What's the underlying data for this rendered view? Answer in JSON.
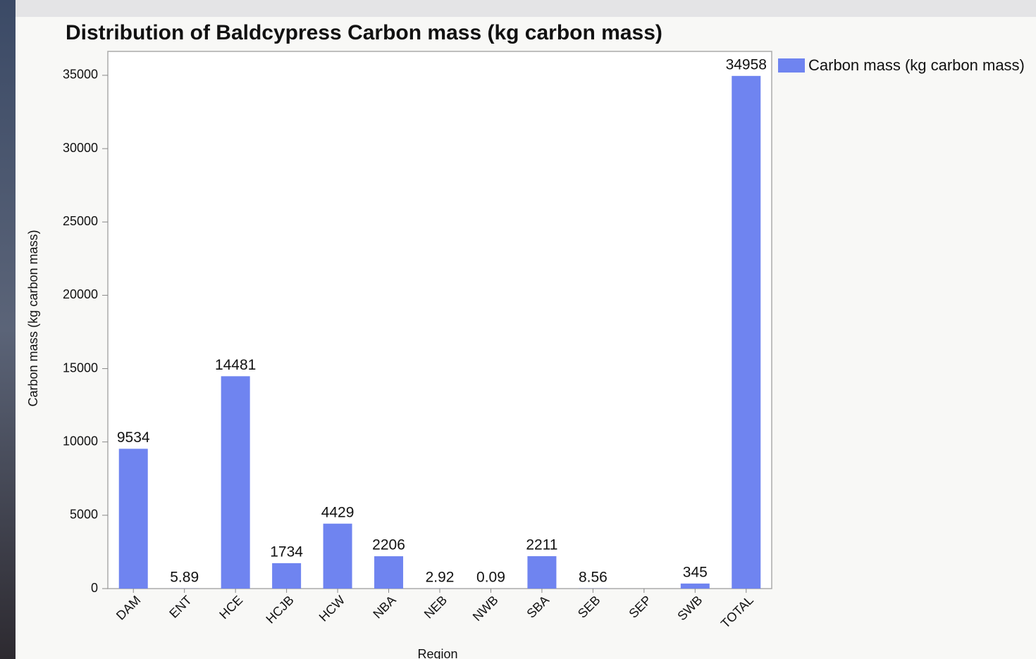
{
  "chart_data": {
    "type": "bar",
    "title": "Distribution of Baldcypress Carbon mass (kg carbon mass)",
    "x_label": "Region",
    "y_label": "Carbon mass (kg carbon mass)",
    "categories": [
      "DAM",
      "ENT",
      "HCE",
      "HCJB",
      "HCW",
      "NBA",
      "NEB",
      "NWB",
      "SBA",
      "SEB",
      "SEP",
      "SWB",
      "TOTAL"
    ],
    "series": [
      {
        "name": "Carbon mass (kg carbon mass)",
        "color": "#6f84f0",
        "values": [
          9534,
          5.89,
          14481,
          1734,
          4429,
          2206,
          2.92,
          0.09,
          2211,
          8.56,
          null,
          345,
          34958
        ]
      }
    ],
    "ylim": [
      0,
      36630
    ],
    "yticks": [
      0,
      5000,
      10000,
      15000,
      20000,
      25000,
      30000,
      35000
    ],
    "grid": false,
    "legend": "right"
  }
}
